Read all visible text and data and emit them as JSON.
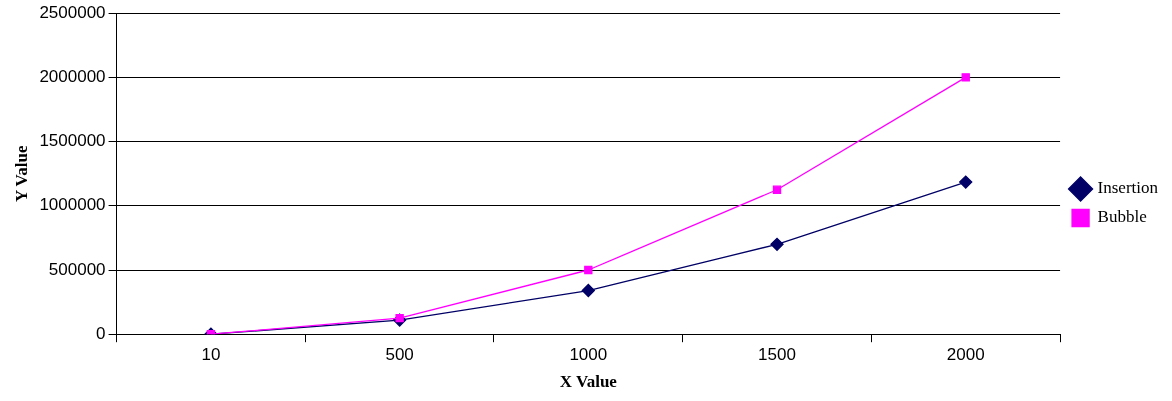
{
  "chart_data": {
    "type": "line",
    "xlabel": "X Value",
    "ylabel": "Y Value",
    "categories": [
      "10",
      "500",
      "1000",
      "1500",
      "2000"
    ],
    "series": [
      {
        "name": "Insertion",
        "color": "#000066",
        "marker": "diamond",
        "values": [
          0,
          110000,
          340000,
          700000,
          1185000
        ]
      },
      {
        "name": "Bubble",
        "color": "#ff00ff",
        "marker": "square",
        "values": [
          0,
          125000,
          500000,
          1125000,
          2000000
        ]
      }
    ],
    "ylim": [
      0,
      2500000
    ],
    "yticks": [
      0,
      500000,
      1000000,
      1500000,
      2000000,
      2500000
    ],
    "grid": "y",
    "legend": "right"
  }
}
